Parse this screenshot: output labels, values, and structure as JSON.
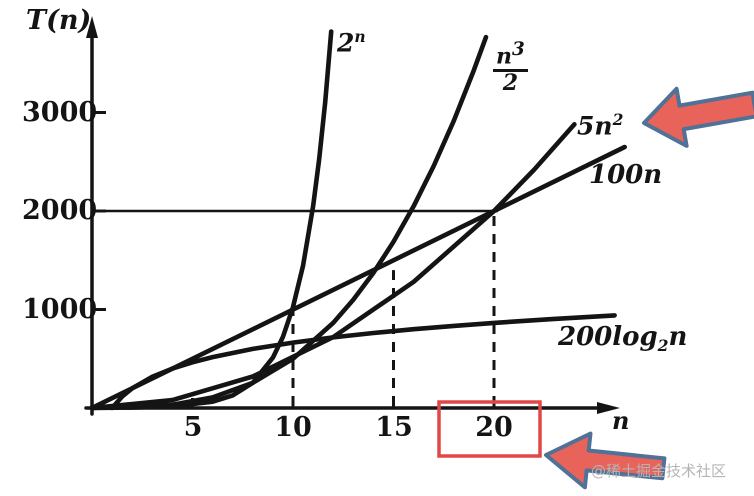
{
  "chart_data": {
    "type": "line",
    "xlabel": "n",
    "ylabel": "T(n)",
    "xlim": [
      0,
      27
    ],
    "ylim": [
      0,
      3950
    ],
    "xticks": [
      5,
      10,
      15,
      20
    ],
    "yticks": [
      1000,
      2000,
      3000
    ],
    "grid": false,
    "legend_position": "labels-on-curves",
    "series": [
      {
        "id": "exp",
        "name": "2^n",
        "points": [
          [
            0,
            1
          ],
          [
            2,
            4
          ],
          [
            4,
            16
          ],
          [
            6,
            64
          ],
          [
            7,
            128
          ],
          [
            8,
            256
          ],
          [
            9,
            512
          ],
          [
            9.5,
            724
          ],
          [
            10,
            1024
          ],
          [
            10.5,
            1448
          ],
          [
            11,
            2048
          ],
          [
            11.3,
            2521
          ],
          [
            11.6,
            3104
          ],
          [
            11.9,
            3822
          ]
        ]
      },
      {
        "id": "cubic",
        "name": "n^3/2",
        "points": [
          [
            0,
            0
          ],
          [
            4,
            32
          ],
          [
            6,
            108
          ],
          [
            8,
            256
          ],
          [
            10,
            500
          ],
          [
            12,
            864
          ],
          [
            13,
            1098
          ],
          [
            14,
            1372
          ],
          [
            15,
            1688
          ],
          [
            16,
            2048
          ],
          [
            17,
            2457
          ],
          [
            18,
            2916
          ],
          [
            19,
            3430
          ],
          [
            19.6,
            3765
          ]
        ]
      },
      {
        "id": "quad",
        "name": "5n^2",
        "points": [
          [
            0,
            0
          ],
          [
            4,
            80
          ],
          [
            8,
            320
          ],
          [
            12,
            720
          ],
          [
            16,
            1280
          ],
          [
            20,
            2000
          ],
          [
            22,
            2420
          ],
          [
            24,
            2880
          ]
        ]
      },
      {
        "id": "linear",
        "name": "100n",
        "points": [
          [
            0,
            0
          ],
          [
            26.5,
            2650
          ]
        ]
      },
      {
        "id": "log",
        "name": "200log2(n)",
        "points": [
          [
            1,
            0
          ],
          [
            1.5,
            117
          ],
          [
            2,
            200
          ],
          [
            3,
            317
          ],
          [
            4,
            400
          ],
          [
            5,
            464
          ],
          [
            6,
            517
          ],
          [
            8,
            600
          ],
          [
            10,
            664
          ],
          [
            12,
            717
          ],
          [
            14,
            761
          ],
          [
            16,
            800
          ],
          [
            18,
            834
          ],
          [
            20,
            864
          ],
          [
            23,
            905
          ],
          [
            26,
            940
          ]
        ]
      }
    ],
    "reference_line": {
      "T": 2000,
      "from_n": 0,
      "to_n": 20.2
    },
    "dashed_guides": [
      {
        "n": 10,
        "T": 1000
      },
      {
        "n": 15,
        "T": 1400
      },
      {
        "n": 20,
        "T": 2000
      }
    ]
  },
  "axis_titles": {
    "y": "T(n)",
    "x": "n"
  },
  "curve_labels": {
    "exp": {
      "base": "2",
      "sup": "n"
    },
    "cubic": {
      "num_base": "n",
      "num_sup": "3",
      "den": "2"
    },
    "quad": {
      "base": "5n",
      "sup": "2"
    },
    "linear": {
      "text": "100n"
    },
    "log": {
      "pre": "200log",
      "sub": "2",
      "post": "n"
    }
  },
  "annotations": {
    "arrow_fill": "#e8635a",
    "arrow_border": "#4f7296",
    "box_color": "#e04848",
    "highlighted_x_value": "20"
  },
  "watermark": {
    "text": "@稀土掘金技术社区",
    "color": "#b5b5b5"
  },
  "colors": {
    "ink": "#141414",
    "background": "#ffffff"
  }
}
